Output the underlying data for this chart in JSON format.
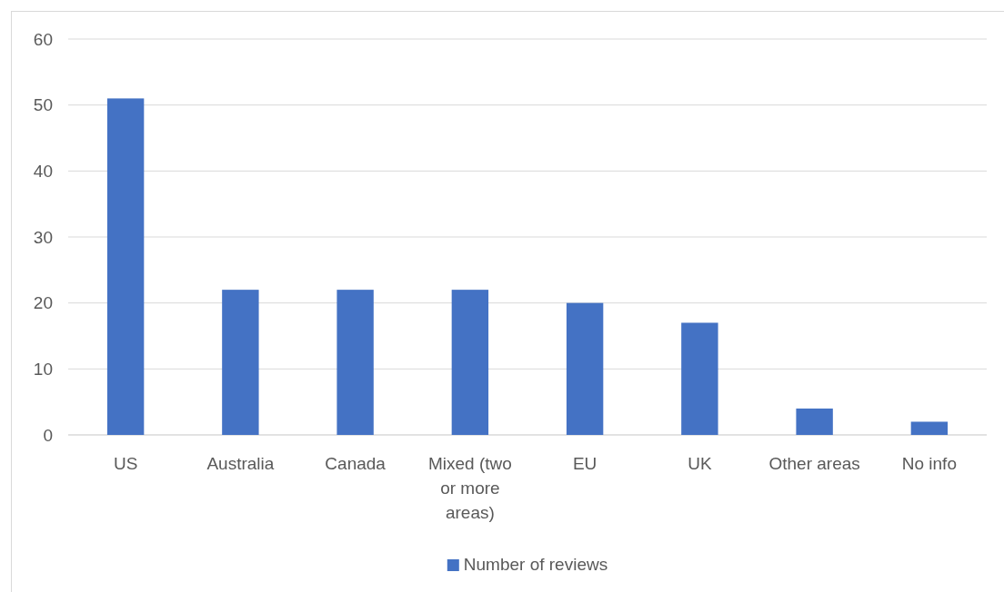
{
  "chart_data": {
    "type": "bar",
    "categories": [
      "US",
      "Australia",
      "Canada",
      "Mixed (two or more areas)",
      "EU",
      "UK",
      "Other areas",
      "No info"
    ],
    "series": [
      {
        "name": "Number of reviews",
        "color": "#4472c4",
        "values": [
          51,
          22,
          22,
          22,
          20,
          17,
          4,
          2
        ]
      }
    ],
    "ylim": [
      0,
      60
    ],
    "yticks": [
      0,
      10,
      20,
      30,
      40,
      50,
      60
    ],
    "grid": "y",
    "legend": "bottom"
  }
}
